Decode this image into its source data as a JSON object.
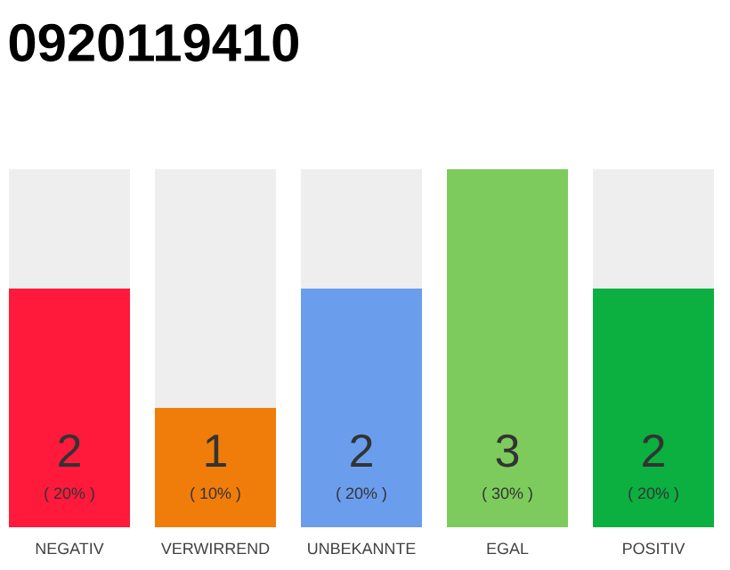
{
  "chart_data": {
    "type": "bar",
    "title": "0920119410",
    "stacked": true,
    "categories": [
      "NEGATIV",
      "VERWIRREND",
      "UNBEKANNTE",
      "EGAL",
      "POSITIV"
    ],
    "series": [
      {
        "colors": [
          "#ff1a3c",
          "#f07d0a",
          "#6b9ded",
          "#7dcb5d",
          "#0bb040"
        ],
        "values": [
          2,
          1,
          2,
          3,
          2
        ],
        "value_labels": [
          "2",
          "1",
          "2",
          "3",
          "2"
        ]
      },
      {
        "color": "#eeeeee",
        "values": [
          1,
          2,
          1,
          0,
          1
        ]
      }
    ],
    "annotations": [
      "( 20% )",
      "( 10% )",
      "( 20% )",
      "( 30% )",
      "( 20% )"
    ]
  }
}
